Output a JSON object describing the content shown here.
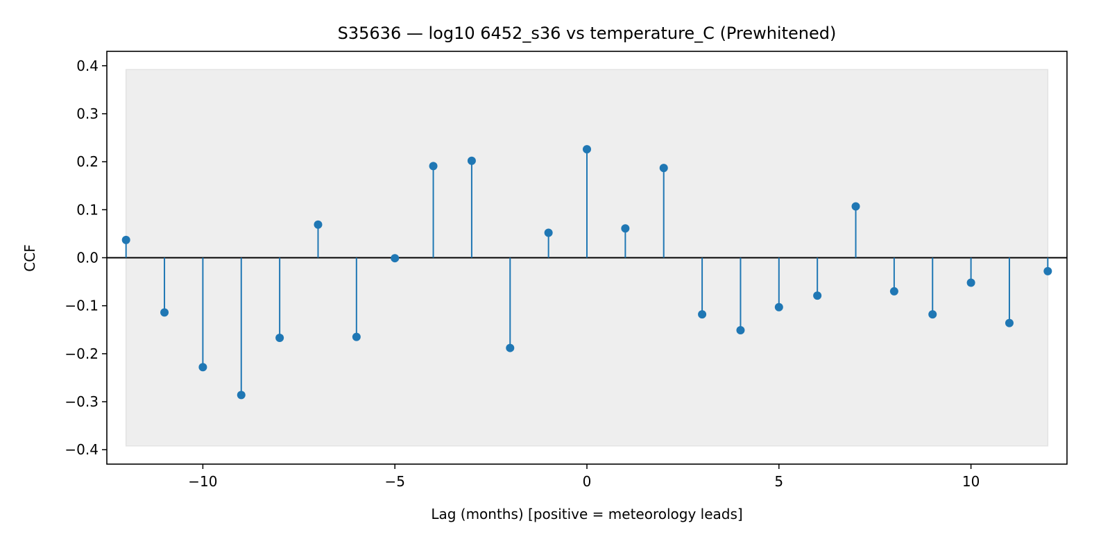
{
  "chart_data": {
    "type": "stem",
    "title": "S35636 — log10 6452_s36 vs temperature_C (Prewhitened)",
    "xlabel": "Lag (months)  [positive = meteorology leads]",
    "ylabel": "CCF",
    "xlim": [
      -12.5,
      12.5
    ],
    "ylim": [
      -0.43,
      0.43
    ],
    "xticks": [
      -10,
      -5,
      0,
      5,
      10
    ],
    "xtick_labels": [
      "−10",
      "−5",
      "0",
      "5",
      "10"
    ],
    "yticks": [
      0.4,
      0.3,
      0.2,
      0.1,
      0.0,
      -0.1,
      -0.2,
      -0.3,
      -0.4
    ],
    "ytick_labels": [
      "0.4",
      "0.3",
      "0.2",
      "0.1",
      "0.0",
      "−0.1",
      "−0.2",
      "−0.3",
      "−0.4"
    ],
    "confidence_band": [
      -0.392,
      0.392
    ],
    "grid": false,
    "legend": null,
    "series": [
      {
        "x": [
          -12,
          -11,
          -10,
          -9,
          -8,
          -7,
          -6,
          -5,
          -4,
          -3,
          -2,
          -1,
          0,
          1,
          2,
          3,
          4,
          5,
          6,
          7,
          8,
          9,
          10,
          11,
          12
        ],
        "values": [
          0.037,
          -0.114,
          -0.228,
          -0.286,
          -0.167,
          0.069,
          -0.165,
          -0.001,
          0.191,
          0.202,
          -0.188,
          0.052,
          0.226,
          0.061,
          0.187,
          -0.118,
          -0.151,
          -0.103,
          -0.079,
          0.107,
          -0.07,
          -0.118,
          -0.052,
          -0.136,
          -0.028
        ]
      }
    ],
    "colors": {
      "stem": "#1f77b4",
      "band": "#eeeeee",
      "band_edge": "#e3e3e3",
      "zero_line": "#000000",
      "axes": "#000000"
    }
  }
}
